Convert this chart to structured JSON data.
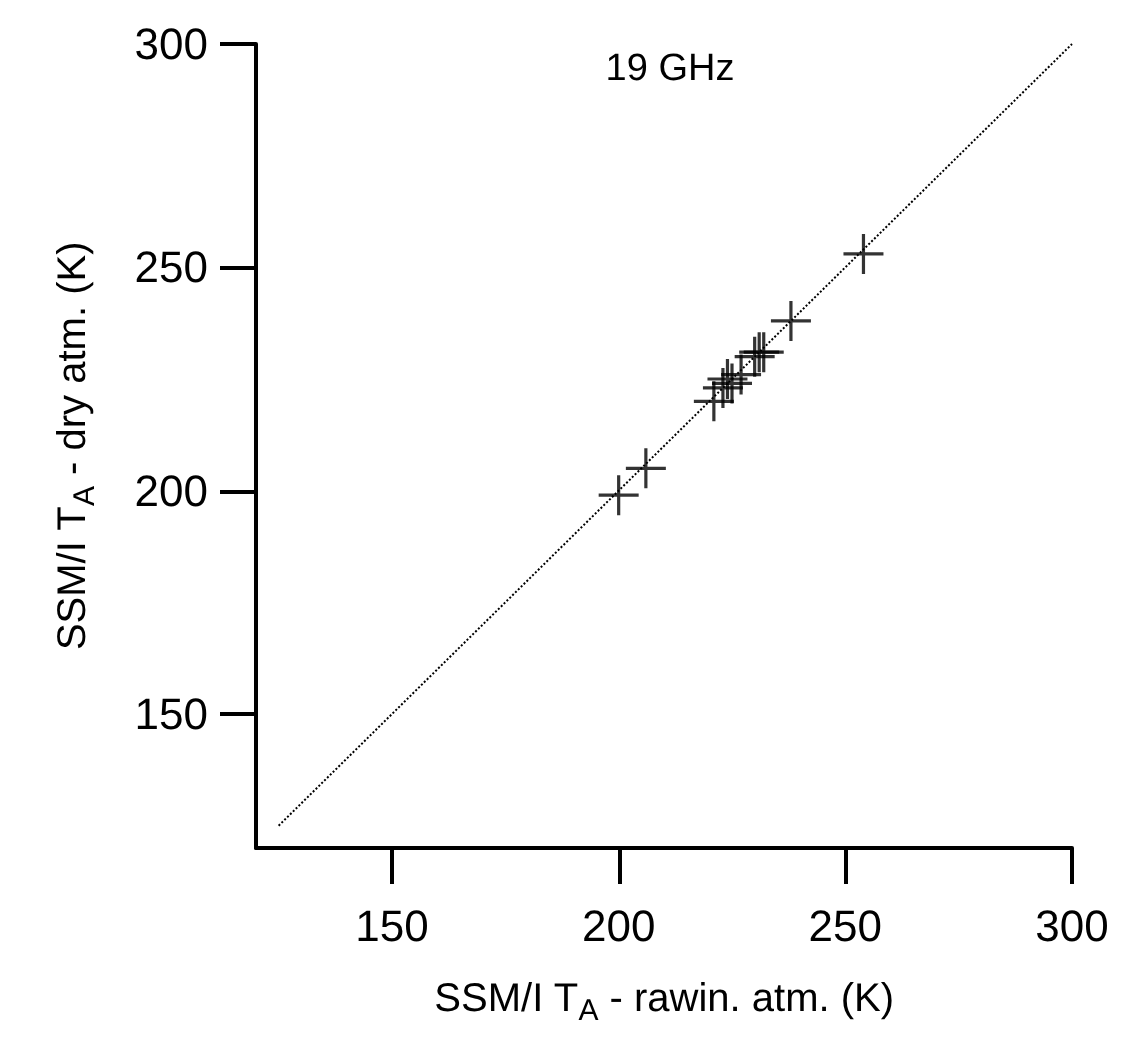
{
  "chart_data": {
    "type": "scatter",
    "title": "19 GHz",
    "xlabel": "SSM/I T$_{A}$ - rawin. atm. (K)",
    "ylabel": "SSM/I T$_{A}$ - dry atm. (K)",
    "x": [
      200,
      206,
      221,
      223,
      224,
      225,
      227,
      230,
      231,
      232,
      238,
      254
    ],
    "series": [
      {
        "color": "#000000",
        "marker": "cross",
        "values": [
          199,
          205,
          220,
          223,
          225,
          224,
          226,
          230,
          231,
          231,
          238,
          253
        ]
      },
      {
        "type": "line",
        "color": "#000000",
        "line_style": "dotted",
        "marker": "none",
        "x": [
          125,
          300
        ],
        "values": [
          125,
          300
        ]
      }
    ],
    "xlim": [
      120,
      300
    ],
    "ylim": [
      120,
      300
    ],
    "xticks": [
      150,
      200,
      250,
      300
    ],
    "yticks": [
      150,
      200,
      250,
      300
    ],
    "grid": false
  }
}
